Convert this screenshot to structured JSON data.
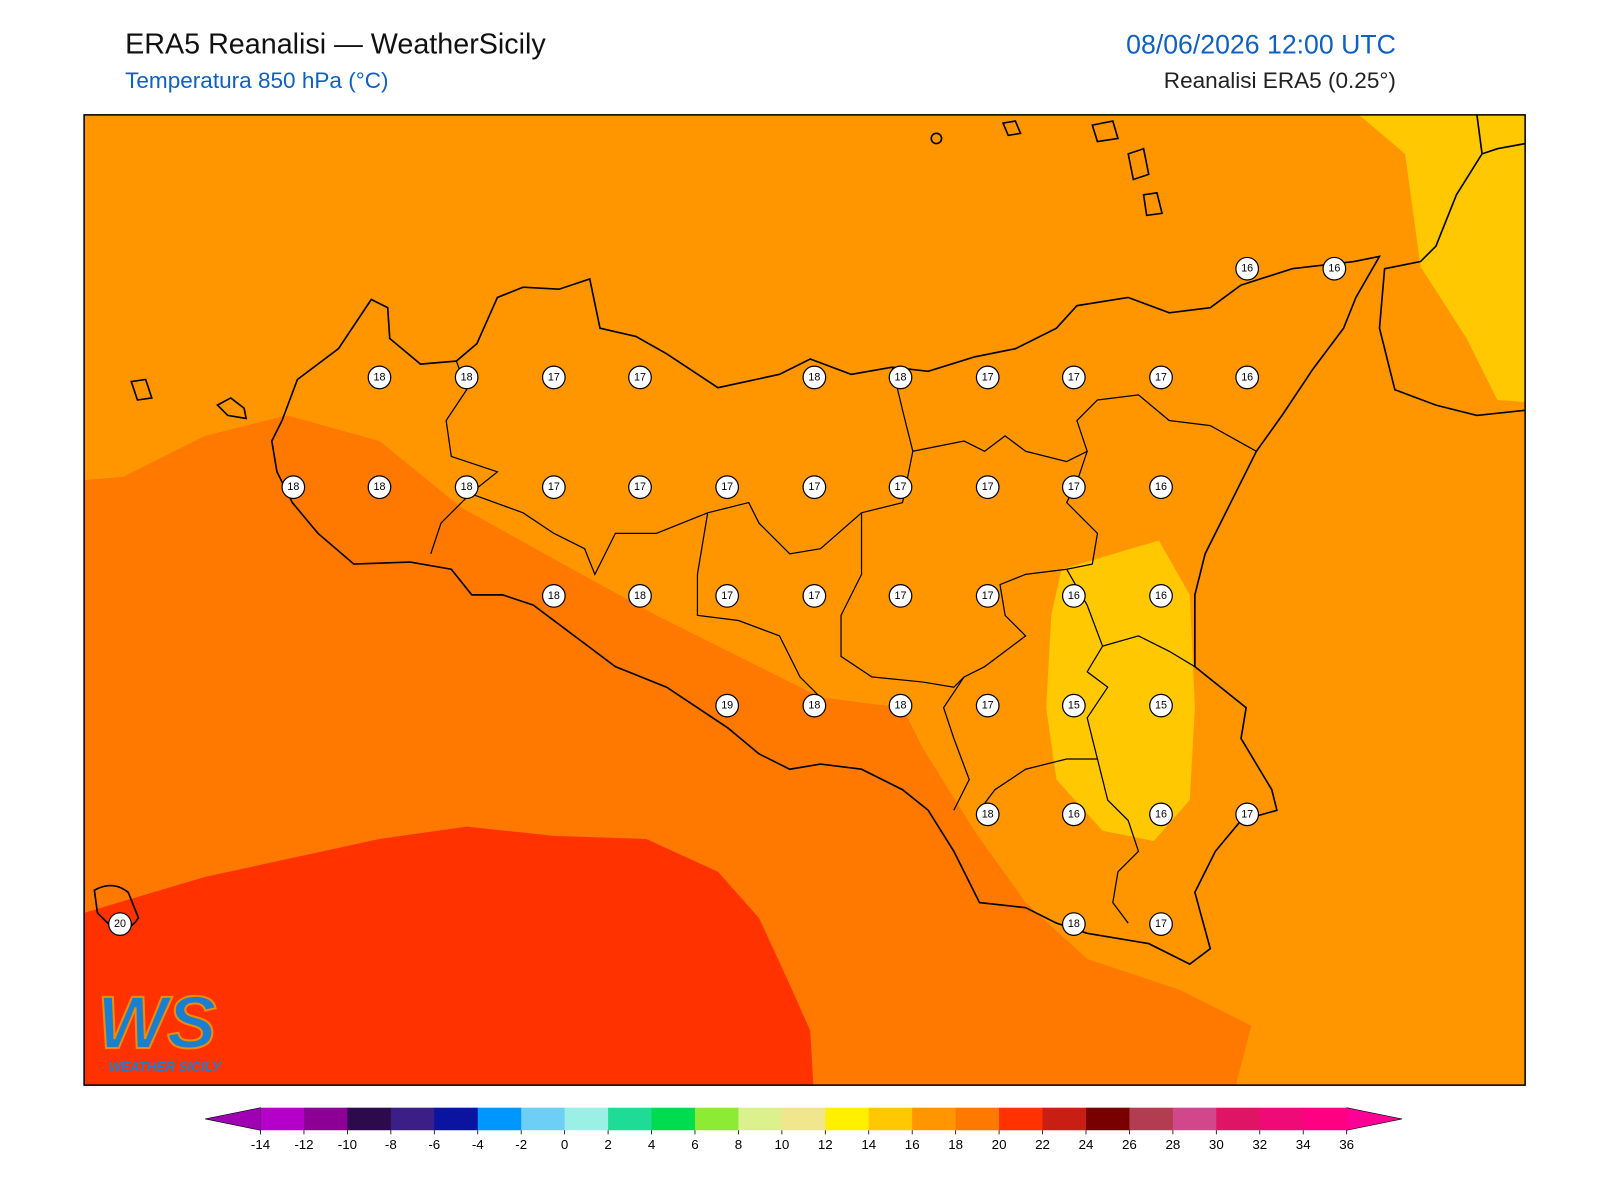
{
  "header": {
    "title": "ERA5 Reanalisi — WeatherSicily",
    "subtitle": "Temperatura 850 hPa (°C)",
    "datetime": "08/06/2026 12:00 UTC",
    "source": "Reanalisi ERA5 (0.25°)"
  },
  "map": {
    "stations": [
      16,
      16,
      18,
      18,
      17,
      17,
      18,
      18,
      17,
      17,
      17,
      16,
      18,
      18,
      18,
      17,
      17,
      17,
      17,
      17,
      17,
      17,
      16,
      18,
      18,
      17,
      17,
      17,
      17,
      16,
      16,
      19,
      18,
      18,
      17,
      15,
      15,
      18,
      16,
      16,
      17,
      20,
      18,
      17
    ]
  },
  "colorbar": {
    "ticks": [
      -14,
      -12,
      -10,
      -8,
      -6,
      -4,
      -2,
      0,
      2,
      4,
      6,
      8,
      10,
      12,
      14,
      16,
      18,
      20,
      22,
      24,
      26,
      28,
      30,
      32,
      34,
      36
    ],
    "colors": [
      "#b400c8",
      "#8c0096",
      "#2d0a4b",
      "#3c1e87",
      "#0a14a0",
      "#0096ff",
      "#6ecff6",
      "#9bf0e6",
      "#1edc96",
      "#00dc50",
      "#8ceb32",
      "#dcf08c",
      "#f0e68c",
      "#fff000",
      "#ffc800",
      "#ff9600",
      "#ff7800",
      "#ff3200",
      "#c81e14",
      "#780000",
      "#b43c50",
      "#d2468c",
      "#e01464",
      "#f00a78",
      "#ff0082"
    ],
    "under": "#a000b4",
    "over": "#ff0096"
  },
  "logo": {
    "mark": "WS",
    "text": "WEATHER SICILY"
  }
}
